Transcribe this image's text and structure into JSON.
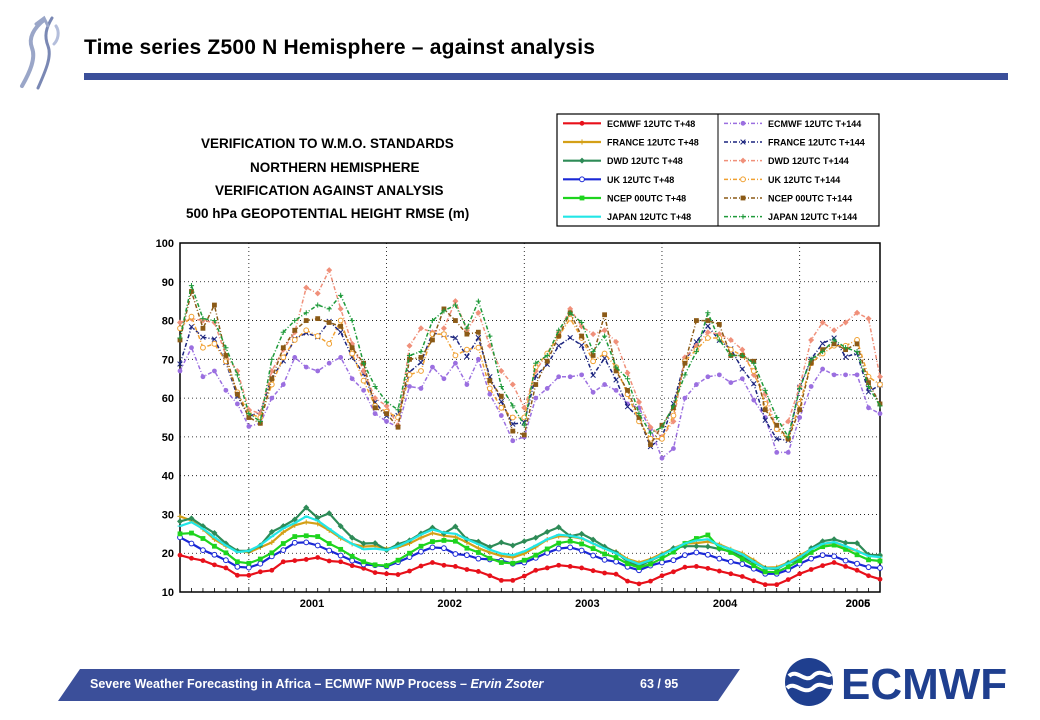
{
  "slide": {
    "title": "Time series Z500 N Hemisphere – against analysis",
    "accent_color": "#3b4f9a"
  },
  "footer": {
    "text_main": "Severe Weather Forecasting in Africa – ECMWF NWP Process – ",
    "author": "Ervin Zsoter",
    "page": "63 / 95",
    "brand": "ECMWF"
  },
  "chart_data": {
    "type": "line",
    "title_lines": [
      "VERIFICATION TO W.M.O. STANDARDS",
      "NORTHERN HEMISPHERE",
      "VERIFICATION AGAINST ANALYSIS",
      "500 hPa GEOPOTENTIAL HEIGHT  RMSE (m)"
    ],
    "x_start": "2000-07",
    "ylim": [
      10,
      100
    ],
    "yticks": [
      10,
      20,
      30,
      40,
      50,
      60,
      70,
      80,
      90,
      100
    ],
    "x_year_labels": [
      "2001",
      "2002",
      "2003",
      "2004",
      "2005",
      "2006"
    ],
    "grid": true,
    "legend_position": "top-right",
    "series": [
      {
        "name": "ECMWF 12UTC T+48",
        "color": "#e8101a",
        "values": [
          19.5,
          18.7,
          18.1,
          17,
          16.2,
          14.3,
          14.3,
          15.2,
          15.6,
          17.8,
          18.1,
          18.4,
          18.9,
          18,
          17.8,
          16.8,
          16.1,
          15,
          14.7,
          14.5,
          15.4,
          16.7,
          17.6,
          16.9,
          16.6,
          15.8,
          15.3,
          14.2,
          13,
          13,
          14.1,
          15.6,
          16.2,
          16.9,
          16.6,
          16.2,
          15.5,
          14.9,
          14.6,
          12.8,
          12.1,
          12.8,
          14.2,
          15.2,
          16.4,
          16.6,
          16.1,
          15.4,
          14.7,
          14,
          12.9,
          11.9,
          11.9,
          13.2,
          14.7,
          15.8,
          16.8,
          17.6,
          16.6,
          15.6,
          14.2,
          13.3
        ]
      },
      {
        "name": "FRANCE 12UTC T+48",
        "color": "#d4a017",
        "values": [
          29.5,
          28.4,
          26.2,
          23.6,
          21.8,
          20.6,
          20.2,
          21.5,
          22.8,
          25.4,
          27.2,
          28,
          27.6,
          25.9,
          23.9,
          22.4,
          21.7,
          21.9,
          21.2,
          21.5,
          22.5,
          24,
          25.2,
          24.5,
          24.2,
          22.8,
          21.3,
          20.2,
          19.3,
          18.9,
          19.9,
          21.6,
          23.5,
          24.4,
          24.3,
          23.8,
          22.5,
          21.2,
          20.4,
          18.5,
          17.6,
          18.5,
          19.9,
          21.3,
          22.5,
          22.6,
          23,
          22.3,
          21,
          20,
          18.2,
          16.3,
          16.4,
          17.6,
          19.4,
          21,
          22.3,
          22.7,
          21.4,
          20.6,
          19.5,
          19.2
        ]
      },
      {
        "name": "DWD 12UTC T+48",
        "color": "#2e8b57",
        "values": [
          28.2,
          29,
          27,
          25.2,
          22.5,
          20.6,
          20.6,
          22,
          25.5,
          27,
          28.7,
          31.8,
          29.1,
          30.3,
          27,
          24,
          22.5,
          22.6,
          20.8,
          22.3,
          23.3,
          25.1,
          26.6,
          25.1,
          26.9,
          23.6,
          23,
          21.6,
          22.8,
          22,
          23.1,
          24,
          25.5,
          26.7,
          24.4,
          25,
          23.5,
          21.7,
          20.2,
          17.9,
          16.7,
          18.1,
          19.5,
          21.3,
          21.8,
          21.8,
          21.7,
          21.1,
          20.5,
          19,
          17.6,
          16.1,
          15.9,
          17.5,
          18.3,
          21.3,
          23.1,
          23.6,
          22.7,
          22.6,
          19.6,
          19.5
        ]
      },
      {
        "name": "UK 12UTC T+48",
        "color": "#1a28d6",
        "values": [
          24.1,
          22.5,
          20.8,
          19.6,
          18.2,
          16.5,
          16.3,
          17.3,
          19.2,
          20.8,
          22.7,
          22.8,
          22,
          20.7,
          19.4,
          18.1,
          17.1,
          16.9,
          16.6,
          17.7,
          19,
          20.4,
          21.5,
          21.3,
          19.8,
          19.5,
          18.6,
          18.4,
          18.1,
          17.3,
          17.6,
          18.8,
          20.1,
          21.2,
          21.5,
          20.7,
          19.4,
          18.3,
          17.8,
          16.5,
          15.6,
          16.8,
          17.6,
          18.2,
          19.5,
          20.2,
          19.6,
          18.6,
          17.8,
          17.2,
          16,
          14.7,
          14.7,
          15.7,
          17.3,
          18.6,
          19.5,
          19.2,
          18.1,
          17.3,
          16.4,
          16.2
        ]
      },
      {
        "name": "NCEP 00UTC T+48",
        "color": "#1ed41e",
        "values": [
          25,
          25.2,
          23.8,
          21.8,
          20.1,
          17.8,
          17.4,
          18.5,
          20.1,
          22.5,
          24.3,
          24.5,
          24.3,
          22.5,
          21,
          19.2,
          17.8,
          17,
          16.8,
          18.2,
          20,
          21.8,
          23,
          23.3,
          23.1,
          21.3,
          20.2,
          18.7,
          17.6,
          17.4,
          18.2,
          19.5,
          21.1,
          22.6,
          23.1,
          22.4,
          21.2,
          19.8,
          18.9,
          17.3,
          16.3,
          17.2,
          18.7,
          20.3,
          22.5,
          23.8,
          24.7,
          21.4,
          20.2,
          18.5,
          16.8,
          15.2,
          15.1,
          16.5,
          18.1,
          20.2,
          21.7,
          22.1,
          21,
          19.6,
          18.3,
          18
        ]
      },
      {
        "name": "JAPAN 12UTC T+48",
        "color": "#22e6e6",
        "values": [
          27,
          28,
          26.3,
          24.1,
          22,
          20.3,
          20.6,
          22.1,
          24.3,
          26.4,
          27.8,
          29.5,
          28.4,
          26.3,
          24.2,
          22.4,
          21,
          21.2,
          20.8,
          21.8,
          23.2,
          24.8,
          26.1,
          25.3,
          25,
          23.6,
          22.3,
          20.9,
          19.9,
          19.5,
          20.5,
          22,
          23.6,
          24.8,
          24.5,
          23.9,
          22.5,
          21.2,
          20,
          18.3,
          17.2,
          18.2,
          19.6,
          21,
          22.5,
          23.3,
          23.6,
          22,
          21,
          19.7,
          17.8,
          16.1,
          16.1,
          17.4,
          19,
          21,
          22.4,
          22.9,
          21.8,
          20.6,
          19.3,
          19
        ]
      },
      {
        "name": "ECMWF 12UTC T+144",
        "color": "#9b6fe0",
        "values": [
          67,
          73,
          65.5,
          67,
          62,
          58.5,
          52.7,
          53.5,
          60,
          63.5,
          70.5,
          68,
          67,
          69,
          70.5,
          65,
          62,
          56,
          54,
          52.5,
          63,
          62.5,
          68,
          65,
          69,
          63.5,
          70,
          61,
          55.5,
          49,
          50,
          60,
          62.5,
          65.5,
          65.5,
          66,
          61.5,
          63.5,
          62,
          58.5,
          57.5,
          52,
          44.5,
          47,
          60,
          63.5,
          65.5,
          66,
          64,
          65,
          59.5,
          55,
          46,
          46,
          55,
          63,
          67.5,
          66,
          66,
          66,
          57.5,
          56
        ]
      },
      {
        "name": "FRANCE 12UTC T+144",
        "color": "#1a237e",
        "values": [
          68.8,
          78.4,
          75.7,
          75.2,
          69.2,
          60.5,
          55.3,
          56.4,
          65.2,
          69.6,
          75.3,
          76.8,
          75.8,
          79.8,
          77,
          70.6,
          66.3,
          58.9,
          55.4,
          55.5,
          66.7,
          69.2,
          76.8,
          76.3,
          75.5,
          70.7,
          75.6,
          65.5,
          59.1,
          53.3,
          53.7,
          65.7,
          68.7,
          73.5,
          75.6,
          73.6,
          65.9,
          70.3,
          64.7,
          57.8,
          54.9,
          47.5,
          49.9,
          58.6,
          69.5,
          74.5,
          78.6,
          74.9,
          72.7,
          67.5,
          63.7,
          54.3,
          49.5,
          49.1,
          62.8,
          70,
          74.1,
          75.5,
          70.6,
          71.6,
          61.6,
          63.4
        ]
      },
      {
        "name": "DWD 12UTC T+144",
        "color": "#f0907a",
        "values": [
          79.5,
          80.5,
          80,
          79.5,
          71,
          67,
          57,
          56,
          67,
          72.5,
          77,
          88.5,
          87,
          93,
          83,
          74,
          67,
          60,
          58,
          53,
          73.5,
          78,
          77,
          78,
          85,
          77.5,
          82,
          73.5,
          67,
          63.5,
          57.5,
          67,
          71.5,
          77,
          83,
          78.5,
          76.5,
          77.5,
          74.5,
          66.5,
          59,
          52.5,
          50,
          54,
          70.5,
          73.5,
          77,
          76.5,
          75,
          72.5,
          66,
          61,
          52,
          54,
          63,
          75,
          79.5,
          77.5,
          79.5,
          82,
          80.5,
          65.5
        ]
      },
      {
        "name": "UK 12UTC T+144",
        "color": "#f0a030",
        "values": [
          78,
          81,
          73,
          74,
          69.5,
          61.5,
          56,
          55,
          63.5,
          70.5,
          75,
          77.5,
          76,
          74,
          80,
          71.5,
          64.5,
          58,
          56.5,
          55,
          66,
          67,
          76.5,
          76.5,
          71,
          72.5,
          73,
          62.5,
          57.5,
          55,
          55,
          68,
          71.5,
          76,
          80.5,
          75.5,
          69.5,
          71.5,
          68,
          61,
          54,
          49.5,
          49.5,
          55.5,
          69.5,
          72.5,
          75.5,
          75.5,
          72.5,
          71,
          67,
          58.5,
          52,
          49.5,
          58.5,
          69,
          71.5,
          73.5,
          73.5,
          75,
          65.5,
          63.5
        ]
      },
      {
        "name": "NCEP 00UTC T+144",
        "color": "#8b5a16",
        "values": [
          75,
          87.5,
          78,
          84,
          71,
          61,
          55,
          53.5,
          65,
          73,
          77.5,
          80,
          80.5,
          79.5,
          78.5,
          73,
          69,
          57.5,
          56,
          52.5,
          70,
          70.5,
          75,
          83,
          80,
          76.5,
          77,
          64.5,
          60.5,
          51.5,
          50.5,
          63.5,
          69.5,
          76,
          82,
          76,
          71,
          81.5,
          67,
          62,
          55,
          48,
          53,
          57.5,
          69,
          80,
          80,
          79,
          71,
          71,
          69.5,
          57,
          53,
          49.5,
          57,
          69,
          72.5,
          74,
          72.5,
          74,
          64,
          58.5
        ]
      },
      {
        "name": "JAPAN 12UTC T+144",
        "color": "#1e9a3a",
        "values": [
          75.5,
          89,
          80.5,
          80,
          73,
          66,
          56,
          54,
          70,
          77,
          80,
          82,
          84,
          83,
          86.5,
          80,
          69,
          63,
          59,
          57,
          71,
          72,
          80,
          82.5,
          84,
          78,
          85,
          76,
          63,
          58,
          53,
          69,
          71,
          77.5,
          82,
          79.5,
          72,
          76,
          68,
          65,
          56,
          51,
          52.5,
          58,
          66,
          72,
          82,
          75,
          71,
          71,
          69,
          62,
          55,
          50,
          62.5,
          70,
          72,
          75,
          73,
          72,
          63,
          58
        ]
      }
    ]
  }
}
